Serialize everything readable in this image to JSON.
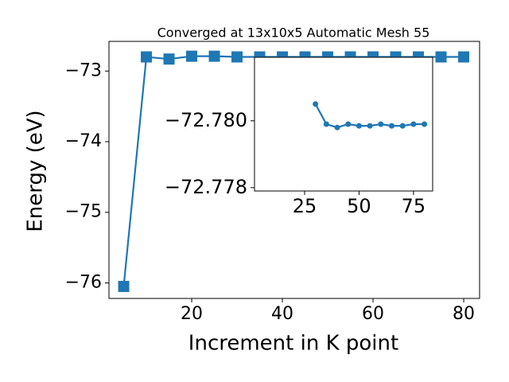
{
  "chart_data": [
    {
      "type": "line",
      "title": "Converged at 13x10x5 Automatic Mesh 55",
      "xlabel": "Increment in K point",
      "ylabel": "Energy (eV)",
      "x": [
        5,
        10,
        15,
        20,
        25,
        30,
        35,
        40,
        45,
        50,
        55,
        60,
        65,
        70,
        75,
        80
      ],
      "series": [
        {
          "color": "#1f77b4",
          "marker": "square",
          "values": [
            -76.05,
            -72.8,
            -72.83,
            -72.79,
            -72.79,
            -72.8,
            -72.8,
            -72.8,
            -72.8,
            -72.8,
            -72.8,
            -72.8,
            -72.8,
            -72.8,
            -72.8,
            -72.8
          ]
        }
      ],
      "xlim": [
        1.75,
        83.5
      ],
      "ylim": [
        -76.22,
        -72.58
      ],
      "xticks": [
        20,
        40,
        60,
        80
      ],
      "yticks": [
        {
          "value": -76,
          "label": "−76"
        },
        {
          "value": -75,
          "label": "−75"
        },
        {
          "value": -74,
          "label": "−74"
        },
        {
          "value": -73,
          "label": "−73"
        }
      ]
    },
    {
      "type": "line",
      "inset": true,
      "x": [
        30,
        35,
        40,
        45,
        50,
        55,
        60,
        65,
        70,
        75,
        80
      ],
      "series": [
        {
          "color": "#1f77b4",
          "marker": "circle",
          "values": [
            -72.7805,
            -72.7799,
            -72.7798,
            -72.7799,
            -72.77985,
            -72.77985,
            -72.7799,
            -72.77985,
            -72.77985,
            -72.7799,
            -72.7799
          ]
        }
      ],
      "xlim": [
        2.0,
        83.8
      ],
      "ylim": [
        -72.7779,
        -72.7819
      ],
      "xticks": [
        25,
        50,
        75
      ],
      "yticks": [
        {
          "value": -72.78,
          "label": "−72.780"
        },
        {
          "value": -72.778,
          "label": "−72.778"
        }
      ]
    }
  ]
}
